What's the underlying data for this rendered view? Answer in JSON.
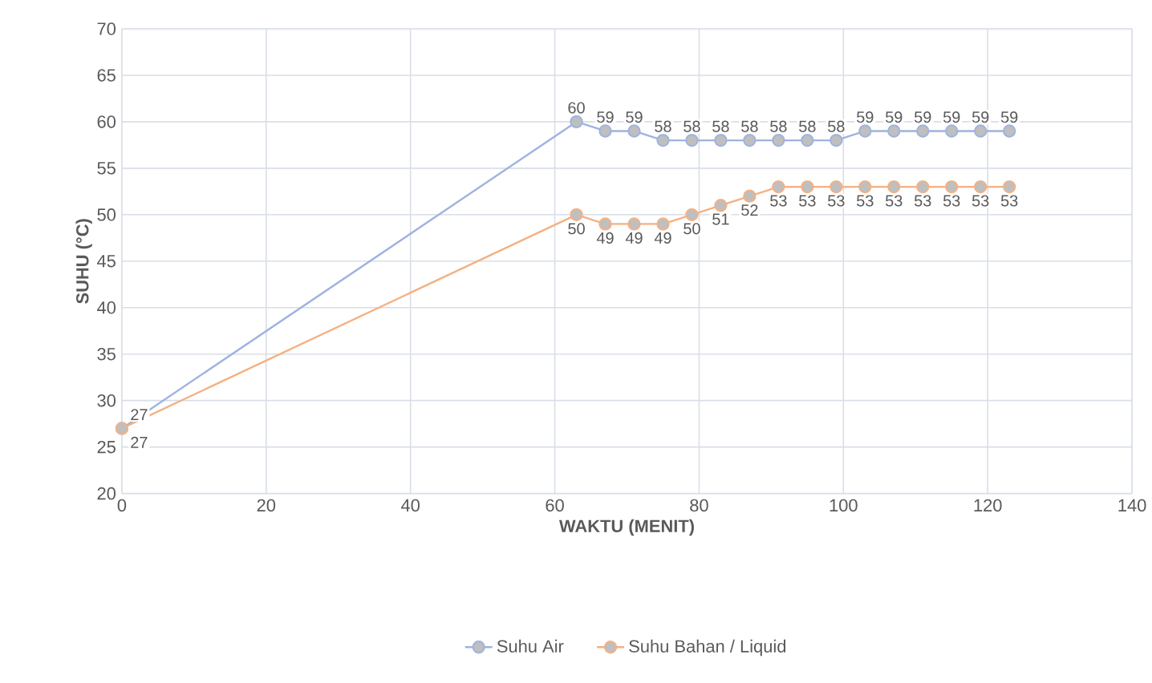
{
  "chart_data": {
    "type": "line",
    "xlabel": "WAKTU (MENIT)",
    "ylabel": "SUHU (°C)",
    "x": [
      0,
      63,
      67,
      71,
      75,
      79,
      83,
      87,
      91,
      95,
      99,
      103,
      107,
      111,
      115,
      119,
      123
    ],
    "series": [
      {
        "name": "Suhu Air",
        "color": "#9fb3e0",
        "values": [
          27,
          60,
          59,
          59,
          58,
          58,
          58,
          58,
          58,
          58,
          58,
          59,
          59,
          59,
          59,
          59,
          59
        ]
      },
      {
        "name": "Suhu Bahan / Liquid",
        "color": "#f4b183",
        "values": [
          27,
          50,
          49,
          49,
          49,
          50,
          51,
          52,
          53,
          53,
          53,
          53,
          53,
          53,
          53,
          53,
          53
        ]
      }
    ],
    "xlim": [
      0,
      140
    ],
    "xticks": [
      0,
      20,
      40,
      60,
      80,
      100,
      120,
      140
    ],
    "ylim": [
      20,
      70
    ],
    "yticks": [
      20,
      25,
      30,
      35,
      40,
      45,
      50,
      55,
      60,
      65,
      70
    ],
    "grid": true,
    "legend": "bottom",
    "marker": "circle",
    "line_style": "solid",
    "data_labels": true
  }
}
